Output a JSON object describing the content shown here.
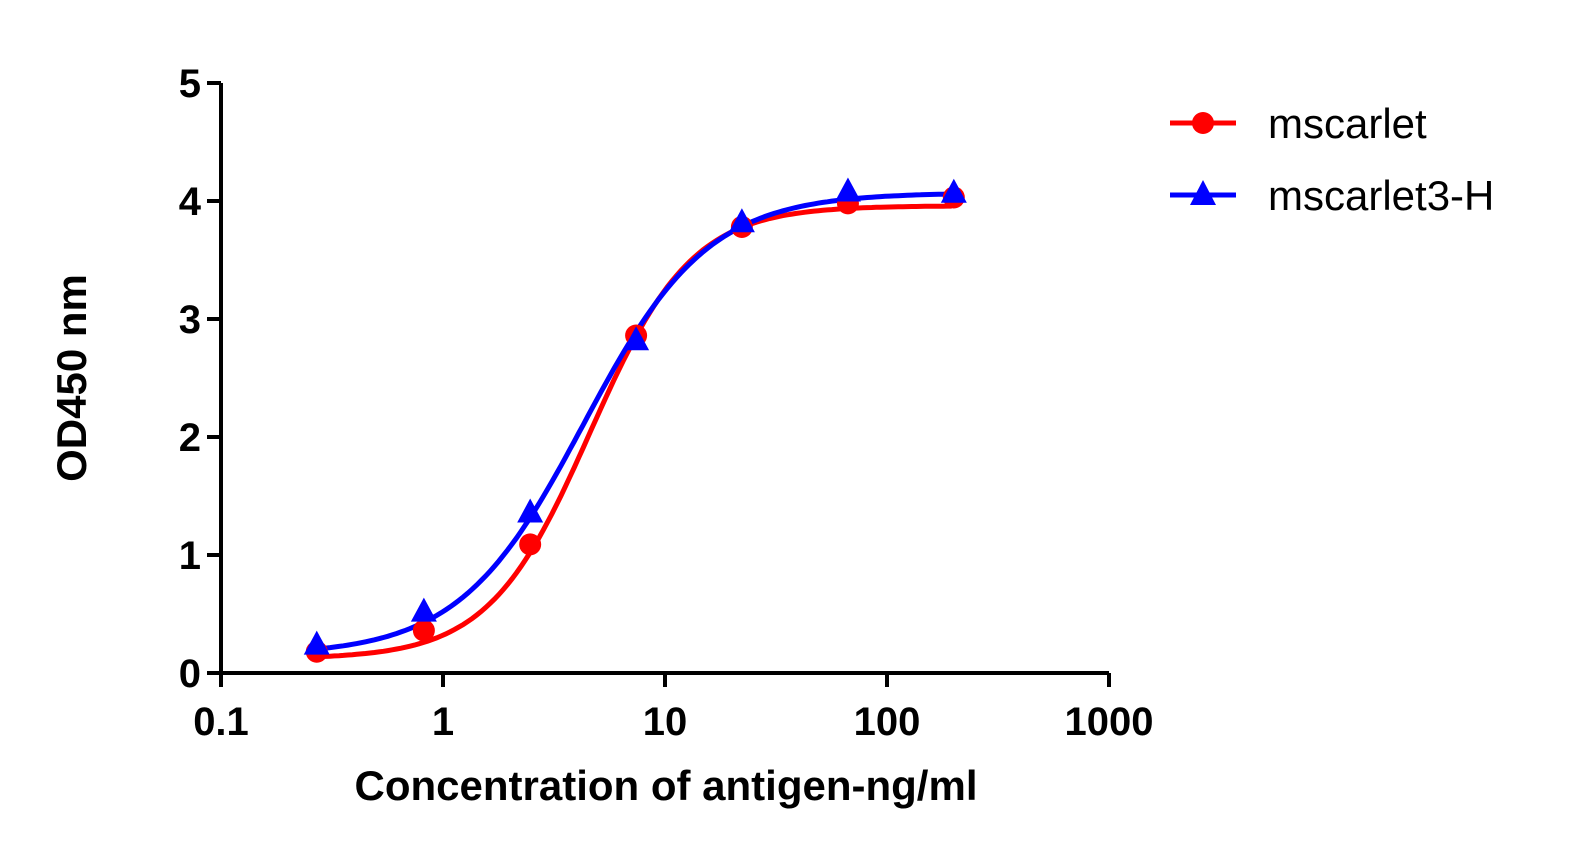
{
  "chart_data": {
    "type": "scatter",
    "title": "",
    "xlabel": "Concentration of antigen-ng/ml",
    "ylabel": "OD450 nm",
    "xscale": "log",
    "xlim": [
      0.1,
      1000
    ],
    "ylim": [
      0,
      5
    ],
    "xticks": [
      "0.1",
      "1",
      "10",
      "100",
      "1000"
    ],
    "yticks": [
      "0",
      "1",
      "2",
      "3",
      "4",
      "5"
    ],
    "grid": false,
    "legend_position": "top-right",
    "x": [
      0.27,
      0.82,
      2.47,
      7.41,
      22.2,
      66.7,
      200
    ],
    "series": [
      {
        "name": "mscarlet",
        "color": "#ff0000",
        "marker": "circle",
        "fit": "sigmoidal curve",
        "values": [
          0.18,
          0.36,
          1.09,
          2.86,
          3.78,
          3.98,
          4.03
        ]
      },
      {
        "name": "mscarlet3-H",
        "color": "#0000ff",
        "marker": "triangle",
        "fit": "sigmoidal curve",
        "values": [
          0.24,
          0.52,
          1.36,
          2.82,
          3.82,
          4.08,
          4.07
        ]
      }
    ]
  }
}
